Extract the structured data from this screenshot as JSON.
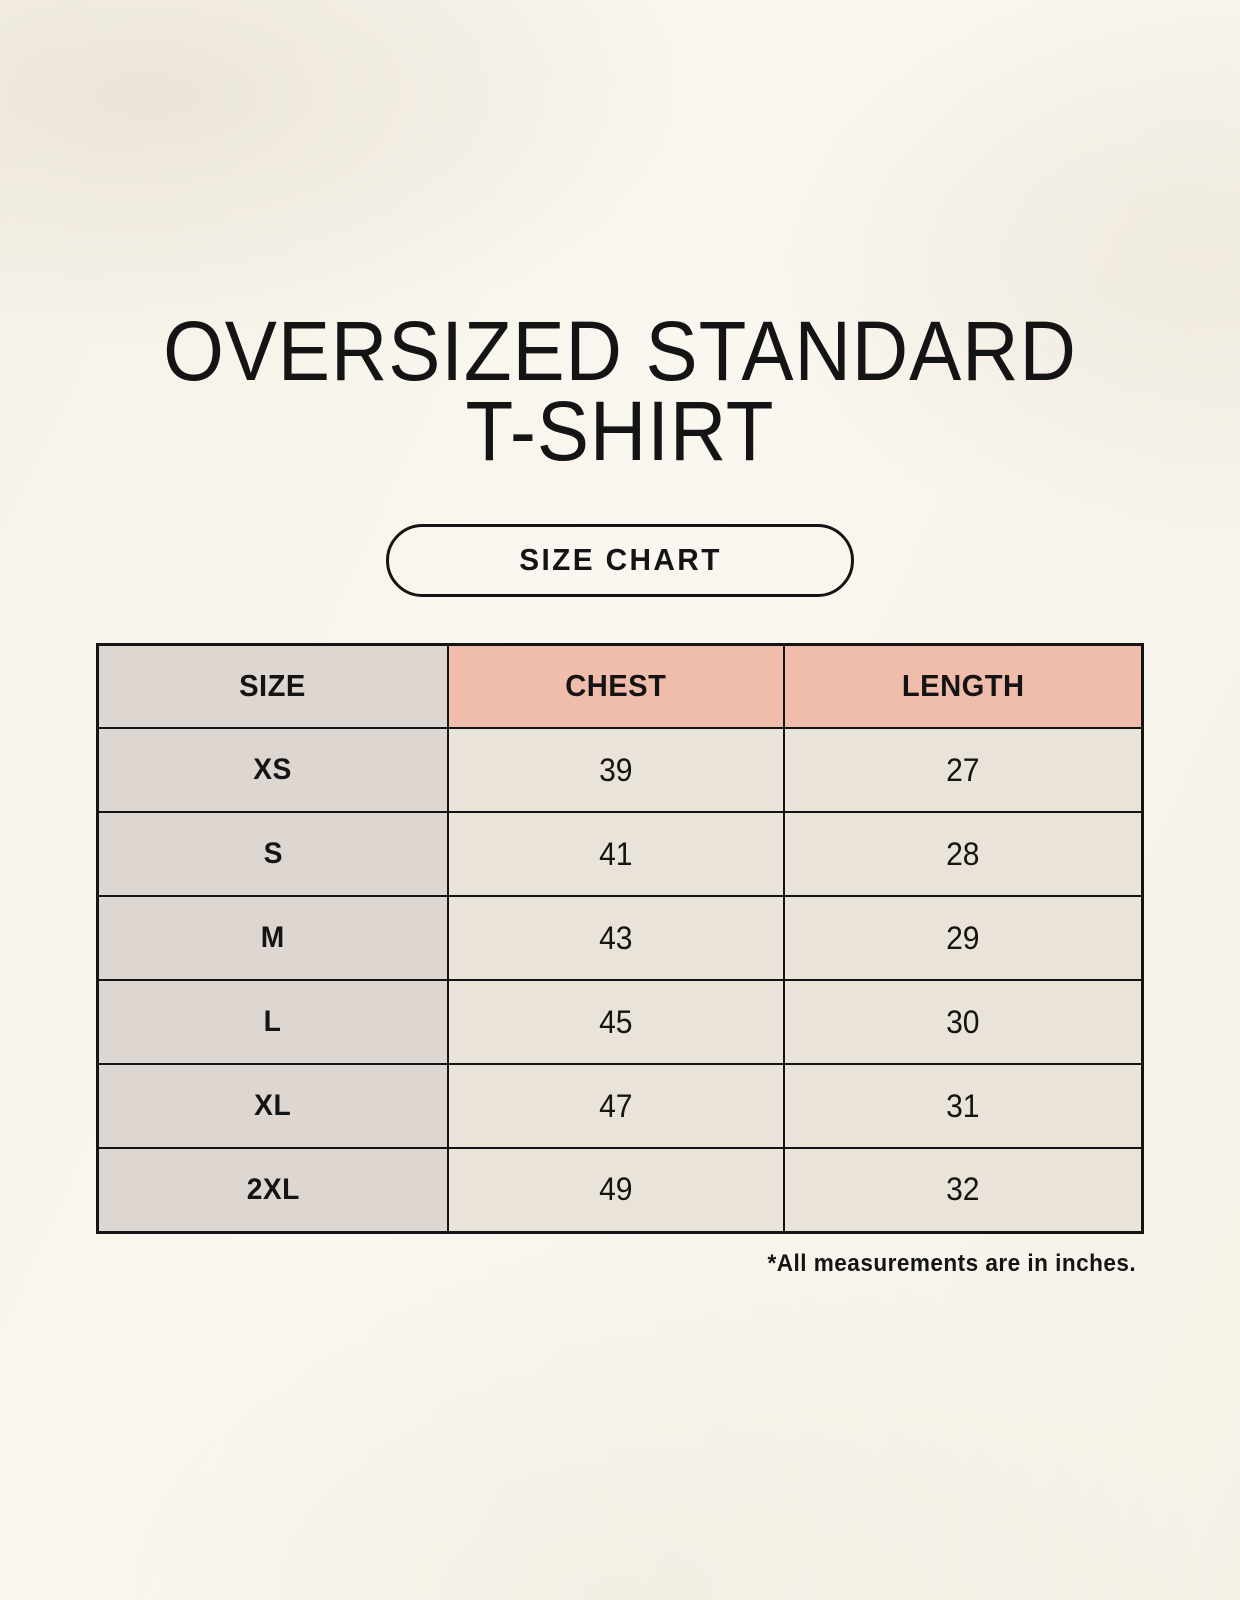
{
  "header": {
    "title_line1": "OVERSIZED STANDARD",
    "title_line2": "T-SHIRT",
    "badge_label": "SIZE CHART"
  },
  "footer": {
    "note": "*All measurements are in inches."
  },
  "colors": {
    "page_background": "#f8f4ec",
    "size_column_background": "#ded6d1",
    "measure_header_background": "#f0bcab",
    "data_cell_background": "#eae3d9",
    "table_border": "#141414",
    "text": "#141414"
  },
  "chart_data": {
    "type": "table",
    "title": "OVERSIZED STANDARD T-SHIRT",
    "columns": [
      "SIZE",
      "CHEST",
      "LENGTH"
    ],
    "rows": [
      {
        "size": "XS",
        "chest": 39,
        "length": 27
      },
      {
        "size": "S",
        "chest": 41,
        "length": 28
      },
      {
        "size": "M",
        "chest": 43,
        "length": 29
      },
      {
        "size": "L",
        "chest": 45,
        "length": 30
      },
      {
        "size": "XL",
        "chest": 47,
        "length": 31
      },
      {
        "size": "2XL",
        "chest": 49,
        "length": 32
      }
    ],
    "units": "inches",
    "footnote": "*All measurements are in inches."
  }
}
